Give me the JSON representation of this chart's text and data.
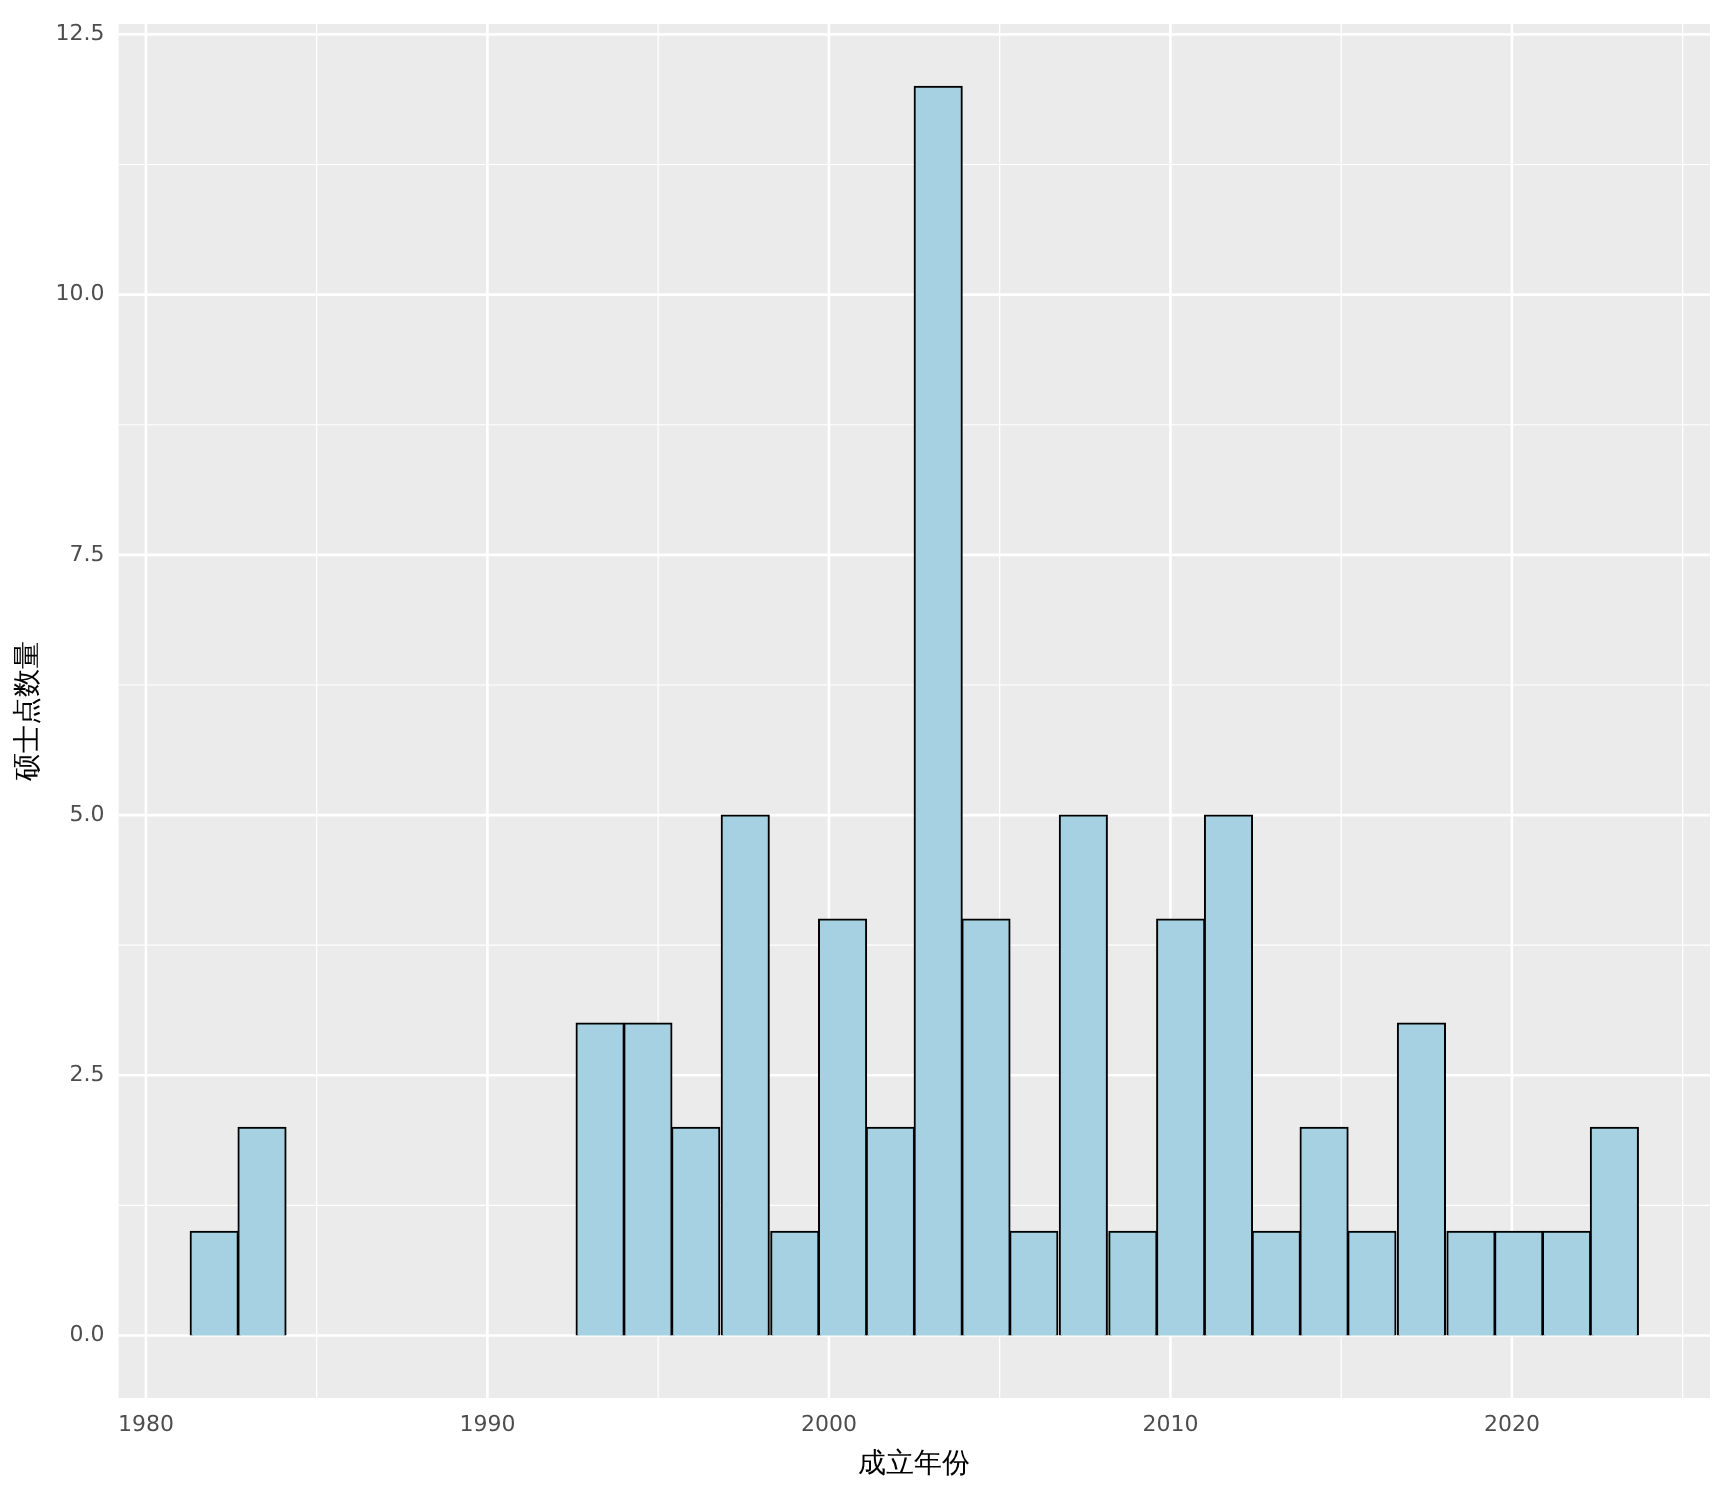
{
  "chart_data": {
    "type": "histogram",
    "xlabel": "成立年份",
    "ylabel": "硕士点数量",
    "bins": [
      1981.3,
      1982.7,
      1984.1,
      1985.5,
      1987.0,
      1988.4,
      1989.8,
      1991.2,
      1992.6,
      1994.0,
      1995.4,
      1996.8,
      1998.3,
      1999.7,
      2001.1,
      2002.5,
      2003.9,
      2005.3,
      2006.7,
      2008.2,
      2009.6,
      2011.0,
      2012.4,
      2013.8,
      2015.2,
      2016.6,
      2018.1,
      2019.5,
      2020.9,
      2022.3,
      2023.7
    ],
    "values": [
      1,
      2,
      0,
      0,
      0,
      0,
      0,
      0,
      3,
      3,
      2,
      5,
      1,
      4,
      2,
      12,
      4,
      1,
      5,
      1,
      4,
      5,
      1,
      2,
      1,
      3,
      1,
      1,
      1,
      2
    ],
    "color": "#a6d1e2",
    "xlim": [
      1979.2,
      2025.8
    ],
    "xticks": [
      1980,
      1990,
      2000,
      2010,
      2020
    ],
    "ylim": [
      -0.6,
      12.6
    ],
    "yticks": [
      {
        "value": 0,
        "label": "0.0"
      },
      {
        "value": 2.5,
        "label": "2.5"
      },
      {
        "value": 5,
        "label": "5.0"
      },
      {
        "value": 7.5,
        "label": "7.5"
      },
      {
        "value": 10,
        "label": "10.0"
      },
      {
        "value": 12.5,
        "label": "12.5"
      }
    ],
    "grid": true,
    "legend": false
  }
}
